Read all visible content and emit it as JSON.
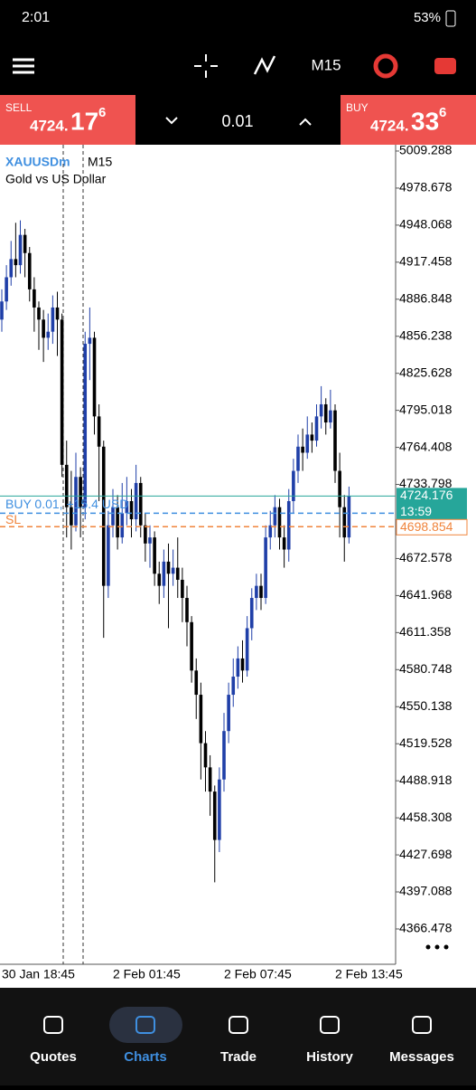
{
  "status_bar": {
    "time": "2:01",
    "battery": "53%"
  },
  "toolbar": {
    "timeframe": "M15"
  },
  "trade_panel": {
    "sell": {
      "label": "SELL",
      "price_main": "4724.",
      "price_big": "17",
      "price_small": "6"
    },
    "lot": "0.01",
    "buy": {
      "label": "BUY",
      "price_main": "4724.",
      "price_big": "33",
      "price_small": "6"
    }
  },
  "chart_data": {
    "type": "candlestick",
    "symbol": "XAUUSDm",
    "timeframe": "M15",
    "subtitle": "Gold vs US Dollar",
    "categories": [
      "30 Jan 18:45",
      null,
      null,
      null,
      null,
      null,
      null,
      null,
      null,
      null,
      null,
      null,
      null,
      null,
      null,
      null,
      null,
      null,
      null,
      null,
      null,
      null,
      null,
      null,
      "2 Feb 01:45",
      null,
      null,
      null,
      null,
      null,
      null,
      null,
      null,
      null,
      null,
      null,
      null,
      null,
      null,
      null,
      null,
      null,
      null,
      null,
      null,
      null,
      null,
      null,
      "2 Feb 07:45",
      null,
      null,
      null,
      null,
      null,
      null,
      null,
      null,
      null,
      null,
      null,
      null,
      null,
      null,
      null,
      null,
      null,
      null,
      null,
      null,
      null,
      null,
      null,
      "2 Feb 13:45",
      null,
      null,
      null
    ],
    "open": [
      4870,
      4885,
      4905,
      4920,
      4915,
      4940,
      4925,
      4895,
      4880,
      4870,
      4855,
      4860,
      4880,
      4870,
      4750,
      4715,
      4700,
      4740,
      4715,
      4850,
      4855,
      4790,
      4765,
      4650,
      4700,
      4715,
      4690,
      4710,
      4720,
      4705,
      4735,
      4700,
      4685,
      4690,
      4660,
      4650,
      4670,
      4660,
      4665,
      4655,
      4640,
      4620,
      4580,
      4560,
      4520,
      4500,
      4480,
      4440,
      4490,
      4530,
      4560,
      4575,
      4590,
      4580,
      4615,
      4640,
      4650,
      4640,
      4690,
      4700,
      4715,
      4690,
      4680,
      4720,
      4745,
      4765,
      4760,
      4775,
      4770,
      4790,
      4800,
      4785,
      4795,
      4745,
      4715,
      4690
    ],
    "high": [
      4895,
      4915,
      4935,
      4950,
      4952,
      4945,
      4930,
      4905,
      4885,
      4878,
      4875,
      4890,
      4893,
      4875,
      4770,
      4745,
      4760,
      4748,
      4860,
      4880,
      4860,
      4800,
      4770,
      4712,
      4730,
      4725,
      4735,
      4740,
      4730,
      4750,
      4740,
      4710,
      4700,
      4695,
      4670,
      4680,
      4685,
      4680,
      4690,
      4665,
      4650,
      4625,
      4590,
      4570,
      4530,
      4510,
      4485,
      4500,
      4545,
      4570,
      4590,
      4600,
      4605,
      4625,
      4648,
      4660,
      4660,
      4700,
      4712,
      4725,
      4722,
      4700,
      4730,
      4755,
      4775,
      4780,
      4790,
      4785,
      4800,
      4815,
      4805,
      4812,
      4800,
      4760,
      4725,
      4732
    ],
    "low": [
      4860,
      4878,
      4898,
      4905,
      4908,
      4905,
      4885,
      4860,
      4845,
      4835,
      4845,
      4850,
      4840,
      4740,
      4690,
      4680,
      4695,
      4690,
      4705,
      4820,
      4775,
      4720,
      4607,
      4640,
      4690,
      4680,
      4685,
      4700,
      4690,
      4695,
      4690,
      4670,
      4665,
      4650,
      4635,
      4640,
      4615,
      4650,
      4640,
      4620,
      4600,
      4570,
      4540,
      4490,
      4480,
      4460,
      4405,
      4430,
      4480,
      4520,
      4550,
      4565,
      4570,
      4575,
      4605,
      4630,
      4630,
      4635,
      4680,
      4690,
      4680,
      4665,
      4670,
      4710,
      4735,
      4745,
      4755,
      4760,
      4765,
      4780,
      4775,
      4780,
      4735,
      4690,
      4670,
      4685
    ],
    "close": [
      4885,
      4905,
      4920,
      4915,
      4940,
      4925,
      4895,
      4880,
      4870,
      4855,
      4860,
      4880,
      4870,
      4750,
      4715,
      4700,
      4740,
      4715,
      4850,
      4855,
      4790,
      4765,
      4650,
      4700,
      4715,
      4690,
      4710,
      4720,
      4705,
      4735,
      4700,
      4685,
      4690,
      4660,
      4650,
      4670,
      4660,
      4665,
      4655,
      4640,
      4620,
      4580,
      4560,
      4520,
      4500,
      4480,
      4440,
      4490,
      4530,
      4560,
      4575,
      4590,
      4580,
      4615,
      4640,
      4650,
      4640,
      4690,
      4700,
      4715,
      4690,
      4680,
      4720,
      4745,
      4765,
      4760,
      4775,
      4770,
      4790,
      4800,
      4785,
      4795,
      4745,
      4715,
      4690,
      4724.176
    ],
    "ylim": [
      4337.3,
      5014.5
    ],
    "yticks": [
      5009.288,
      4978.678,
      4948.068,
      4917.458,
      4886.848,
      4856.238,
      4825.628,
      4795.018,
      4764.408,
      4733.798,
      4672.578,
      4641.968,
      4611.358,
      4580.748,
      4550.138,
      4519.528,
      4488.918,
      4458.308,
      4427.698,
      4397.088,
      4366.478
    ],
    "bull_color": "#1f3fa8",
    "bear_color": "#000000",
    "price_line": {
      "value": 4724.176,
      "countdown": "13:59",
      "color": "#26a69a"
    },
    "position_line": {
      "label": "BUY 0.01, +15.4 USD",
      "value": 4710,
      "color": "#3f8fe0"
    },
    "sl_line": {
      "label": "SL",
      "value": 4698.854,
      "color": "#f0843c"
    }
  },
  "nav": [
    "Quotes",
    "Charts",
    "Trade",
    "History",
    "Messages"
  ]
}
